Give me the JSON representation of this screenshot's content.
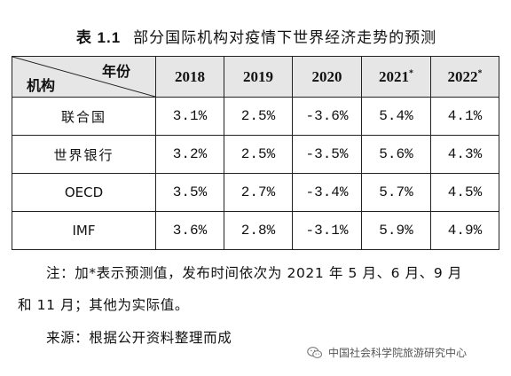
{
  "caption": {
    "table_id": "表 1.1",
    "title": "部分国际机构对疫情下世界经济走势的预测"
  },
  "table": {
    "corner_top": "年份",
    "corner_bottom": "机构",
    "columns": [
      {
        "label": "2018",
        "star": ""
      },
      {
        "label": "2019",
        "star": ""
      },
      {
        "label": "2020",
        "star": ""
      },
      {
        "label": "2021",
        "star": "*"
      },
      {
        "label": "2022",
        "star": "*"
      }
    ],
    "rows": [
      {
        "name": "联合国",
        "values": [
          "3.1%",
          "2.5%",
          "-3.6%",
          "5.4%",
          "4.1%"
        ]
      },
      {
        "name": "世界银行",
        "values": [
          "3.2%",
          "2.5%",
          "-3.5%",
          "5.6%",
          "4.3%"
        ]
      },
      {
        "name": "OECD",
        "values": [
          "3.5%",
          "2.7%",
          "-3.4%",
          "5.7%",
          "4.5%"
        ]
      },
      {
        "name": "IMF",
        "values": [
          "3.6%",
          "2.8%",
          "-3.1%",
          "5.9%",
          "4.9%"
        ]
      }
    ]
  },
  "notes": {
    "line1": "注：加*表示预测值，发布时间依次为 2021 年 5 月、6 月、9 月",
    "line2": "和 11 月；其他为实际值。",
    "source": "来源：根据公开资料整理而成"
  },
  "watermark": {
    "text": "中国社会科学院旅游研究中心",
    "icon": "wechat-icon"
  }
}
